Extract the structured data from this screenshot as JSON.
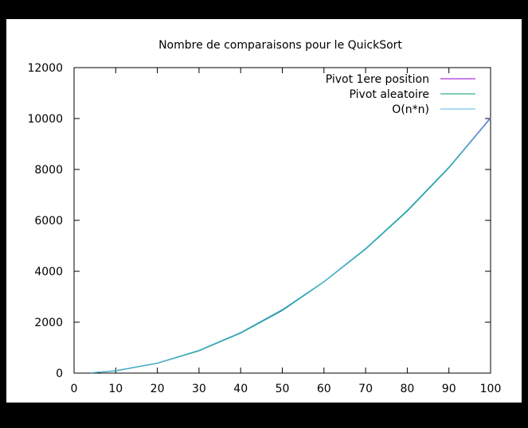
{
  "chart_data": {
    "type": "line",
    "title": "Nombre de comparaisons pour le QuickSort",
    "xlabel": "",
    "ylabel": "",
    "xlim": [
      0,
      100
    ],
    "ylim": [
      0,
      12000
    ],
    "xticks": [
      0,
      10,
      20,
      30,
      40,
      50,
      60,
      70,
      80,
      90,
      100
    ],
    "yticks": [
      0,
      2000,
      4000,
      6000,
      8000,
      10000,
      12000
    ],
    "legend_position": "top-right",
    "grid": false,
    "series": [
      {
        "name": "Pivot 1ere position",
        "color": "#9400d3",
        "x": [
          4,
          10,
          20,
          30,
          40,
          50,
          60,
          70,
          80,
          90,
          100
        ],
        "y": [
          10,
          90,
          390,
          880,
          1580,
          2470,
          3590,
          4880,
          6380,
          8090,
          10030
        ]
      },
      {
        "name": "Pivot aleatoire",
        "color": "#009e73",
        "x": [
          4,
          10,
          20,
          30,
          40,
          50,
          60,
          70,
          80,
          90,
          100
        ],
        "y": [
          10,
          88,
          385,
          875,
          1570,
          2460,
          3580,
          4870,
          6360,
          8060,
          10000
        ]
      },
      {
        "name": "O(n*n)",
        "color": "#56b4e9",
        "x": [
          4,
          10,
          20,
          30,
          40,
          50,
          60,
          70,
          80,
          90,
          100
        ],
        "y": [
          16,
          100,
          400,
          900,
          1600,
          2500,
          3600,
          4900,
          6400,
          8100,
          10000
        ]
      }
    ]
  }
}
